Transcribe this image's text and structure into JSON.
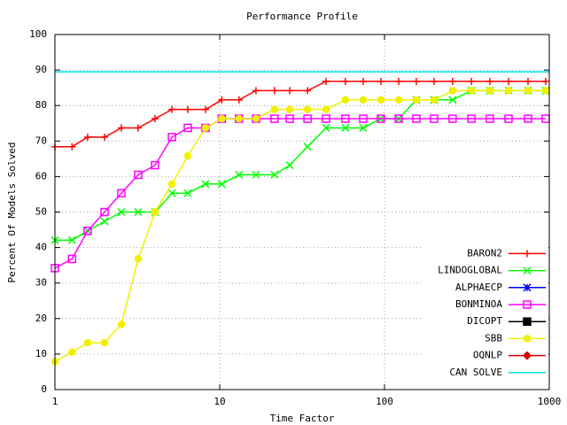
{
  "chart_data": {
    "type": "line",
    "title": "Performance Profile",
    "x_label": "Time Factor",
    "y_label": "Percent Of Models Solved",
    "x": [
      1,
      1.27,
      1.58,
      2,
      2.53,
      3.2,
      4.05,
      5.13,
      6.4,
      8.2,
      10.3,
      13.1,
      16.6,
      21.5,
      26.6,
      34.1,
      44.2,
      57.9,
      74.3,
      95.1,
      122,
      156,
      200,
      259,
      337,
      436,
      566,
      743,
      951
    ],
    "xscale": "log",
    "xlim": [
      1,
      1000
    ],
    "xticks": [
      1,
      10,
      100,
      1000
    ],
    "ylim": [
      0,
      100
    ],
    "yticks": [
      0,
      10,
      20,
      30,
      40,
      50,
      60,
      70,
      80,
      90,
      100
    ],
    "grid": true,
    "legend": "lower right",
    "series": [
      {
        "name": "BARON2",
        "color": "#ff0000",
        "marker": "plus",
        "values": [
          68.4,
          68.4,
          71.1,
          71.1,
          73.7,
          73.7,
          76.3,
          78.9,
          78.9,
          78.9,
          81.6,
          81.6,
          84.2,
          84.2,
          84.2,
          84.2,
          86.8,
          86.8,
          86.8,
          86.8,
          86.8,
          86.8,
          86.8,
          86.8,
          86.8,
          86.8,
          86.8,
          86.8,
          86.8
        ]
      },
      {
        "name": "LINDOGLOBAL",
        "color": "#00ff00",
        "marker": "cross",
        "values": [
          42.1,
          42.1,
          44.7,
          47.4,
          50,
          50,
          50,
          55.3,
          55.3,
          57.9,
          57.9,
          60.5,
          60.5,
          60.5,
          63.2,
          68.4,
          73.7,
          73.7,
          73.7,
          76.3,
          76.3,
          81.6,
          81.6,
          81.6,
          84.2,
          84.2,
          84.2,
          84.2,
          84.2
        ]
      },
      {
        "name": "ALPHAECP",
        "color": "#0000ff",
        "marker": "star"
      },
      {
        "name": "BONMINOA",
        "color": "#ff00ff",
        "marker": "square",
        "values": [
          34.2,
          36.8,
          44.7,
          50,
          55.3,
          60.5,
          63.2,
          71.1,
          73.7,
          73.7,
          76.3,
          76.3,
          76.3,
          76.3,
          76.3,
          76.3,
          76.3,
          76.3,
          76.3,
          76.3,
          76.3,
          76.3,
          76.3,
          76.3,
          76.3,
          76.3,
          76.3,
          76.3,
          76.3
        ]
      },
      {
        "name": "DICOPT",
        "color": "#000000",
        "marker": "filled-square"
      },
      {
        "name": "SBB",
        "color": "#f0f000",
        "marker": "filled-circle",
        "values": [
          7.9,
          10.5,
          13.2,
          13.2,
          18.4,
          36.8,
          50,
          57.9,
          65.8,
          73.7,
          76.3,
          76.3,
          76.3,
          78.9,
          78.9,
          78.9,
          78.9,
          81.6,
          81.6,
          81.6,
          81.6,
          81.6,
          81.6,
          84.2,
          84.2,
          84.2,
          84.2,
          84.2,
          84.2
        ]
      },
      {
        "name": "OQNLP",
        "color": "#e00000",
        "marker": "filled-diamond"
      },
      {
        "name": "CAN SOLVE",
        "color": "#00e0e0",
        "marker": "none",
        "x": [
          1,
          1000
        ],
        "values": [
          89.5,
          89.5
        ]
      }
    ]
  }
}
